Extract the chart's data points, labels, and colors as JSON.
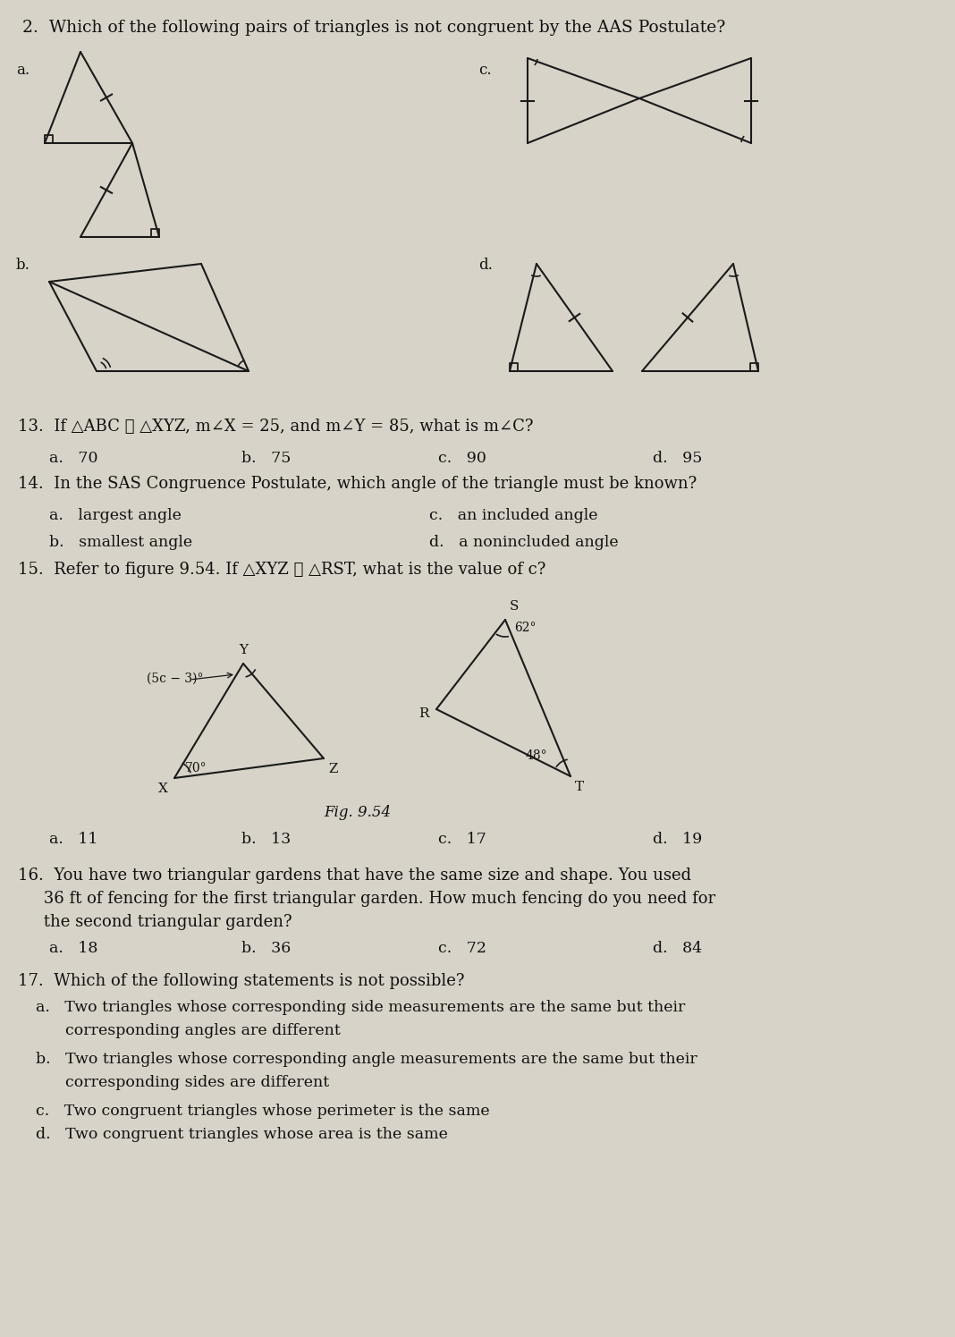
{
  "bg_color": "#d8d3c8",
  "text_color": "#111111",
  "title": "2.  Which of the following pairs of triangles is not congruent by the AAS Postulate?",
  "q13": "13.  If △ABC ≅ △XYZ, m∠X = 25, and m∠Y = 85, what is m∠C?",
  "q13_opts_a": "a.   70",
  "q13_opts_b": "b.   75",
  "q13_opts_c": "c.   90",
  "q13_opts_d": "d.   95",
  "q14": "14.  In the SAS Congruence Postulate, which angle of the triangle must be known?",
  "q14_a": "a.   largest angle",
  "q14_b": "b.   smallest angle",
  "q14_c": "c.   an included angle",
  "q14_d": "d.   a nonincluded angle",
  "q15": "15.  Refer to figure 9.54. If △XYZ ≅ △RST, what is the value of c?",
  "q15_fig": "Fig. 9.54",
  "q15_opts_a": "a.   11",
  "q15_opts_b": "b.   13",
  "q15_opts_c": "c.   17",
  "q15_opts_d": "d.   19",
  "q16_line1": "16.  You have two triangular gardens that have the same size and shape. You used",
  "q16_line2": "     36 ft of fencing for the first triangular garden. How much fencing do you need for",
  "q16_line3": "     the second triangular garden?",
  "q16_a": "a.   18",
  "q16_b": "b.   36",
  "q16_c": "c.   72",
  "q16_d": "d.   84",
  "q17": "17.  Which of the following statements is not possible?",
  "q17_a1": "a.   Two triangles whose corresponding side measurements are the same but their",
  "q17_a2": "      corresponding angles are different",
  "q17_b1": "b.   Two triangles whose corresponding angle measurements are the same but their",
  "q17_b2": "      corresponding sides are different",
  "q17_c": "c.   Two congruent triangles whose perimeter is the same",
  "q17_d": "d.   Two congruent triangles whose area is the same"
}
